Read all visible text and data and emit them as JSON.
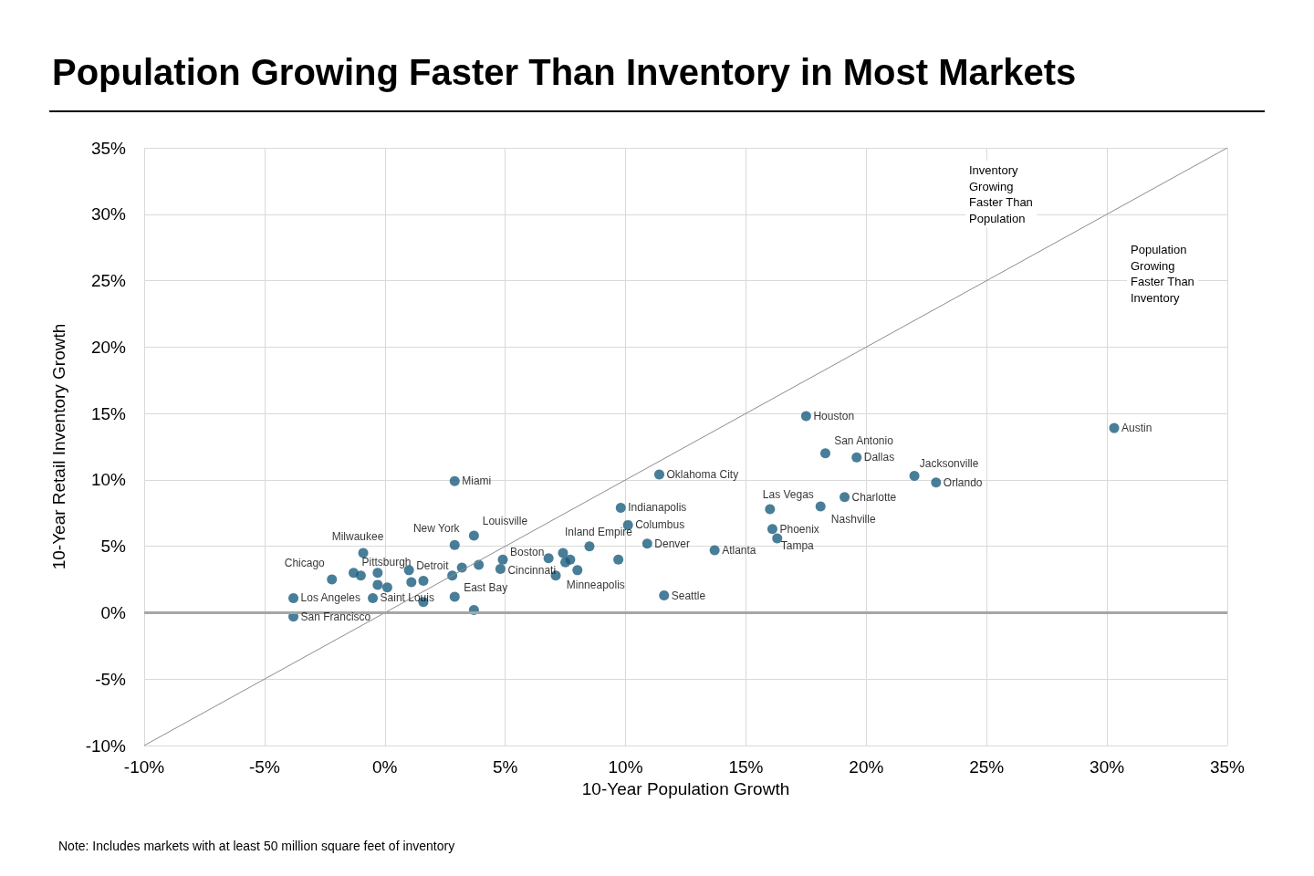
{
  "chart_data": {
    "type": "scatter",
    "title": "Population Growing Faster Than Inventory in Most Markets",
    "xlabel": "10-Year Population Growth",
    "ylabel": "10-Year Retail Inventory Growth",
    "xlim": [
      -10,
      35
    ],
    "xticks": [
      {
        "value": -10,
        "label": "-10%"
      },
      {
        "value": -5,
        "label": "-5%"
      },
      {
        "value": 0,
        "label": "0%"
      },
      {
        "value": 5,
        "label": "5%"
      },
      {
        "value": 10,
        "label": "10%"
      },
      {
        "value": 15,
        "label": "15%"
      },
      {
        "value": 20,
        "label": "20%"
      },
      {
        "value": 25,
        "label": "25%"
      },
      {
        "value": 30,
        "label": "30%"
      },
      {
        "value": 35,
        "label": "35%"
      }
    ],
    "ylim": [
      -10,
      35
    ],
    "yticks": [
      {
        "value": -10,
        "label": "-10%"
      },
      {
        "value": -5,
        "label": "-5%"
      },
      {
        "value": 0,
        "label": "0%"
      },
      {
        "value": 5,
        "label": "5%"
      },
      {
        "value": 10,
        "label": "10%"
      },
      {
        "value": 15,
        "label": "15%"
      },
      {
        "value": 20,
        "label": "20%"
      },
      {
        "value": 25,
        "label": "25%"
      },
      {
        "value": 30,
        "label": "30%"
      },
      {
        "value": 35,
        "label": "35%"
      }
    ],
    "grid": true,
    "marker": "circle",
    "series": [
      {
        "type": "line",
        "color": "#8c8c8c",
        "marker": "none",
        "x": [
          -10,
          35
        ],
        "values": [
          -10,
          35
        ]
      },
      {
        "color": "#1b5e80",
        "x": [
          30.3,
          17.5,
          18.3,
          19.6,
          22.0,
          22.9,
          19.1,
          18.1,
          16.0,
          16.1,
          16.3,
          13.7,
          11.4,
          9.8,
          10.1,
          10.9,
          11.6,
          8.5,
          8.0,
          4.9,
          4.8,
          3.2,
          2.9,
          3.7,
          2.9,
          -0.9,
          -2.2,
          -1.3,
          1.0,
          -3.8,
          -0.5,
          -3.8,
          9.7,
          7.4,
          7.5,
          7.7,
          7.1,
          6.8,
          -1.0,
          -0.3,
          -0.3,
          0.1,
          1.1,
          1.6,
          1.6,
          2.9,
          2.8,
          3.9,
          3.7
        ],
        "values": [
          13.9,
          14.8,
          12.0,
          11.7,
          10.3,
          9.8,
          8.7,
          8.0,
          7.8,
          6.3,
          5.6,
          4.7,
          10.4,
          7.9,
          6.6,
          5.2,
          1.3,
          5.0,
          3.2,
          4.0,
          3.3,
          3.4,
          9.9,
          5.8,
          5.1,
          4.5,
          2.5,
          3.0,
          3.2,
          1.1,
          1.1,
          -0.3,
          4.0,
          4.5,
          3.8,
          4.0,
          2.8,
          4.1,
          2.8,
          3.0,
          2.1,
          1.9,
          2.3,
          2.4,
          0.8,
          1.2,
          2.8,
          3.6,
          0.2
        ]
      }
    ],
    "ref_lines": [
      {
        "axis": "y",
        "value": 0,
        "color": "#a6a6a6"
      }
    ],
    "annotations": [
      {
        "text": "Austin",
        "x": 30.3,
        "y": 13.9
      },
      {
        "text": "Houston",
        "x": 17.5,
        "y": 14.8
      },
      {
        "text": "San Antonio",
        "x": 18.3,
        "y": 12.0
      },
      {
        "text": "Dallas",
        "x": 19.6,
        "y": 11.7
      },
      {
        "text": "Jacksonville",
        "x": 22.0,
        "y": 10.3
      },
      {
        "text": "Orlando",
        "x": 22.9,
        "y": 9.8
      },
      {
        "text": "Charlotte",
        "x": 19.1,
        "y": 8.7
      },
      {
        "text": "Nashville",
        "x": 18.1,
        "y": 8.0
      },
      {
        "text": "Las Vegas",
        "x": 16.0,
        "y": 7.8
      },
      {
        "text": "Phoenix",
        "x": 16.1,
        "y": 6.3
      },
      {
        "text": "Tampa",
        "x": 16.3,
        "y": 5.6
      },
      {
        "text": "Atlanta",
        "x": 13.7,
        "y": 4.7
      },
      {
        "text": "Oklahoma City",
        "x": 11.4,
        "y": 10.4
      },
      {
        "text": "Indianapolis",
        "x": 9.8,
        "y": 7.9
      },
      {
        "text": "Columbus",
        "x": 10.1,
        "y": 6.6
      },
      {
        "text": "Denver",
        "x": 10.9,
        "y": 5.2
      },
      {
        "text": "Seattle",
        "x": 11.6,
        "y": 1.3
      },
      {
        "text": "Inland Empire",
        "x": 8.5,
        "y": 5.0
      },
      {
        "text": "Minneapolis",
        "x": 8.0,
        "y": 3.2
      },
      {
        "text": "Boston",
        "x": 4.9,
        "y": 4.0
      },
      {
        "text": "Cincinnati",
        "x": 4.8,
        "y": 3.3
      },
      {
        "text": "East Bay",
        "x": 3.2,
        "y": 3.4
      },
      {
        "text": "Miami",
        "x": 2.9,
        "y": 9.9
      },
      {
        "text": "Louisville",
        "x": 3.7,
        "y": 5.8
      },
      {
        "text": "New York",
        "x": 2.9,
        "y": 5.1
      },
      {
        "text": "Milwaukee",
        "x": -0.9,
        "y": 4.5
      },
      {
        "text": "Chicago",
        "x": -2.2,
        "y": 2.5
      },
      {
        "text": "Pittsburgh",
        "x": -1.3,
        "y": 3.0
      },
      {
        "text": "Detroit",
        "x": 1.0,
        "y": 3.2
      },
      {
        "text": "Los Angeles",
        "x": -3.8,
        "y": 1.1
      },
      {
        "text": "Saint Louis",
        "x": -0.5,
        "y": 1.1
      },
      {
        "text": "San Francisco",
        "x": -3.8,
        "y": -0.3
      },
      "Inventory\nGrowing\nFaster Than\nPopulation",
      "Population\nGrowing\nFaster Than\nInventory",
      "Note: Includes markets with at least 50 million square feet of inventory"
    ]
  }
}
